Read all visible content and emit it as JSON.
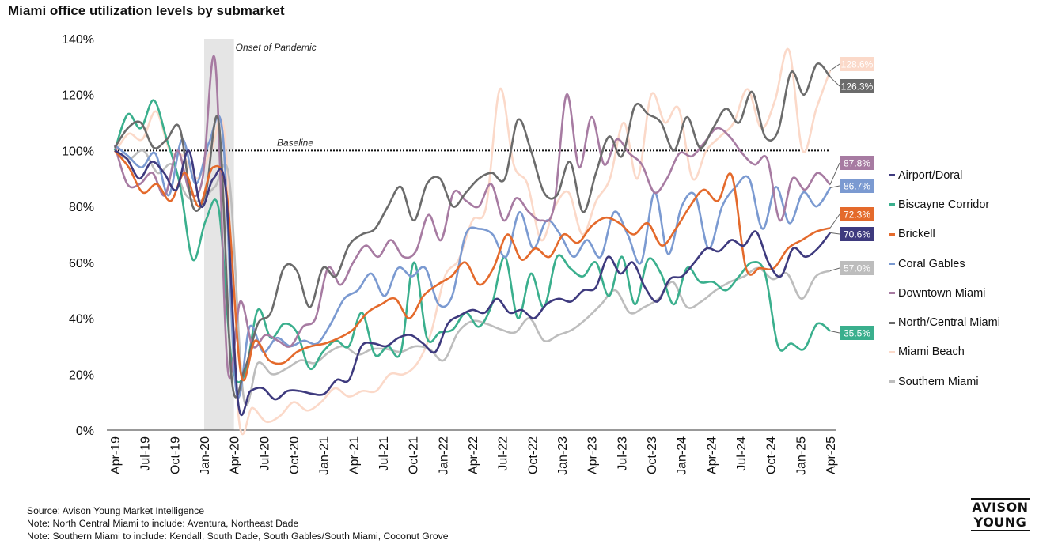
{
  "title": "Miami office utilization levels by submarket",
  "chart_data": {
    "type": "line",
    "title": "Miami office utilization levels by submarket",
    "x_tick_labels": [
      "Apr-19",
      "Jul-19",
      "Oct-19",
      "Jan-20",
      "Apr-20",
      "Jul-20",
      "Oct-20",
      "Jan-21",
      "Apr-21",
      "Jul-21",
      "Oct-21",
      "Jan-22",
      "Apr-22",
      "Jul-22",
      "Oct-22",
      "Jan-23",
      "Apr-23",
      "Jul-23",
      "Oct-23",
      "Jan-24",
      "Apr-24",
      "Jul-24",
      "Oct-24",
      "Jan-25",
      "Apr-25"
    ],
    "y_tick_labels": [
      "0%",
      "20%",
      "40%",
      "60%",
      "80%",
      "100%",
      "120%",
      "140%"
    ],
    "ylim": [
      0,
      140
    ],
    "x_range": [
      "Apr-19",
      "Apr-25"
    ],
    "baseline": {
      "value": 100,
      "label": "Baseline"
    },
    "shaded_period": {
      "start": "Jan-20",
      "end": "Apr-20",
      "label": "Onset of Pandemic"
    },
    "legend_position": "right",
    "series": [
      {
        "name": "Airport/Doral",
        "color": "#3e3a7e",
        "end_label": "70.6%",
        "values": [
          100,
          97,
          90,
          96,
          92,
          86,
          100,
          80,
          90,
          86,
          10,
          14,
          15,
          11,
          14,
          14,
          13,
          13,
          18,
          18,
          30,
          31,
          30,
          33,
          34,
          31,
          28,
          38,
          41,
          43,
          42,
          47,
          42,
          43,
          40,
          45,
          47,
          46,
          50,
          51,
          62,
          56,
          60,
          51,
          46,
          54,
          55,
          60,
          65,
          64,
          68,
          66,
          71,
          60,
          55,
          65,
          62,
          65,
          70.6
        ]
      },
      {
        "name": "Biscayne Corridor",
        "color": "#3aaf8d",
        "end_label": "35.5%",
        "values": [
          100,
          113,
          108,
          118,
          104,
          88,
          61,
          75,
          79,
          24,
          20,
          43,
          33,
          38,
          35,
          22,
          28,
          32,
          30,
          42,
          27,
          30,
          28,
          60,
          33,
          35,
          36,
          42,
          37,
          45,
          62,
          40,
          56,
          44,
          62,
          58,
          55,
          60,
          48,
          62,
          45,
          61,
          56,
          45,
          58,
          53,
          53,
          50,
          55,
          60,
          56,
          30,
          31,
          29,
          38,
          35.5
        ]
      },
      {
        "name": "Brickell",
        "color": "#e46a2c",
        "end_label": "72.3%",
        "values": [
          100,
          94,
          85,
          88,
          82,
          92,
          80,
          94,
          84,
          20,
          32,
          25,
          24,
          28,
          30,
          31,
          33,
          36,
          42,
          45,
          47,
          40,
          48,
          52,
          55,
          60,
          52,
          58,
          70,
          61,
          65,
          62,
          70,
          67,
          73,
          76,
          74,
          70,
          74,
          66,
          72,
          80,
          86,
          82,
          91,
          58,
          58,
          58,
          65,
          68,
          71,
          72.3
        ]
      },
      {
        "name": "Coral Gables",
        "color": "#7b9ad1",
        "end_label": "86.7%",
        "values": [
          102,
          98,
          94,
          99,
          84,
          104,
          88,
          103,
          106,
          14,
          37,
          28,
          33,
          30,
          32,
          31,
          38,
          47,
          50,
          56,
          48,
          58,
          55,
          58,
          45,
          48,
          70,
          72,
          70,
          62,
          78,
          65,
          75,
          70,
          62,
          68,
          62,
          78,
          70,
          60,
          85,
          63,
          80,
          84,
          65,
          80,
          87,
          90,
          72,
          87,
          74,
          85,
          80,
          86.7
        ]
      },
      {
        "name": "Downtown Miami",
        "color": "#a77ba2",
        "end_label": "87.8%",
        "values": [
          102,
          88,
          88,
          92,
          84,
          100,
          85,
          90,
          132,
          22,
          46,
          30,
          34,
          32,
          30,
          37,
          40,
          58,
          52,
          60,
          66,
          62,
          68,
          62,
          64,
          77,
          68,
          85,
          82,
          80,
          88,
          75,
          83,
          78,
          75,
          80,
          120,
          94,
          112,
          95,
          104,
          99,
          95,
          85,
          90,
          99,
          98,
          103,
          108,
          105,
          99,
          95,
          97,
          75,
          90,
          86,
          92,
          87.8
        ]
      },
      {
        "name": "North/Central Miami",
        "color": "#6b6b6b",
        "end_label": "126.3%",
        "values": [
          101,
          108,
          110,
          101,
          104,
          108,
          80,
          85,
          110,
          18,
          22,
          38,
          42,
          58,
          57,
          44,
          58,
          55,
          66,
          70,
          72,
          80,
          87,
          75,
          88,
          90,
          80,
          85,
          90,
          92,
          90,
          111,
          100,
          85,
          84,
          96,
          78,
          92,
          105,
          98,
          116,
          113,
          110,
          100,
          112,
          101,
          108,
          115,
          110,
          121,
          105,
          107,
          128,
          120,
          131,
          126.3
        ]
      },
      {
        "name": "Miami Beach",
        "color": "#fbd9c9",
        "end_label": "128.6%",
        "values": [
          99,
          106,
          104,
          114,
          100,
          98,
          90,
          100,
          105,
          5,
          8,
          3,
          5,
          10,
          7,
          10,
          15,
          12,
          14,
          14,
          20,
          20,
          24,
          35,
          55,
          61,
          75,
          80,
          122,
          95,
          88,
          68,
          80,
          85,
          70,
          82,
          90,
          110,
          90,
          120,
          110,
          115,
          90,
          100,
          105,
          110,
          122,
          108,
          118,
          136,
          100,
          115,
          128.6
        ]
      },
      {
        "name": "Southern Miami",
        "color": "#bdbdbd",
        "end_label": "57.0%",
        "values": [
          100,
          97,
          100,
          92,
          95,
          84,
          82,
          87,
          90,
          12,
          24,
          20,
          22,
          25,
          24,
          28,
          30,
          27,
          29,
          29,
          28,
          30,
          29,
          25,
          35,
          39,
          38,
          36,
          35,
          40,
          32,
          34,
          36,
          40,
          45,
          50,
          42,
          44,
          47,
          53,
          44,
          46,
          50,
          53,
          55,
          58,
          54,
          56,
          47,
          55,
          57.0
        ]
      }
    ]
  },
  "legend": [
    {
      "label": "Airport/Doral",
      "color": "#3e3a7e"
    },
    {
      "label": "Biscayne Corridor",
      "color": "#3aaf8d"
    },
    {
      "label": "Brickell",
      "color": "#e46a2c"
    },
    {
      "label": "Coral Gables",
      "color": "#7b9ad1"
    },
    {
      "label": "Downtown Miami",
      "color": "#a77ba2"
    },
    {
      "label": "North/Central Miami",
      "color": "#6b6b6b"
    },
    {
      "label": "Miami Beach",
      "color": "#fbd9c9"
    },
    {
      "label": "Southern Miami",
      "color": "#bdbdbd"
    }
  ],
  "notes": {
    "source": "Source: Avison Young Market Intelligence",
    "note1": "Note: North Central Miami to include: Aventura, Northeast Dade",
    "note2": "Note: Southern Miami to include: Kendall, South Dade, South Gables/South Miami, Coconut Grove"
  },
  "logo": {
    "line1": "AVISON",
    "line2": "YOUNG"
  }
}
